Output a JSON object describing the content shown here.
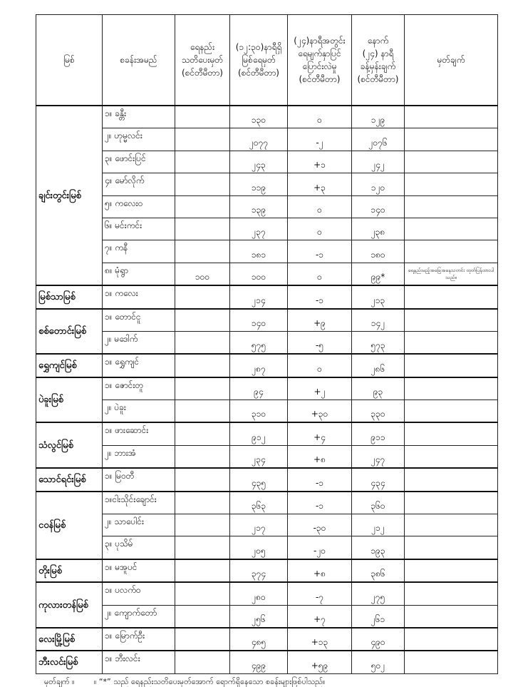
{
  "headers": [
    "မြစ်",
    "စခန်းအမည်",
    "ရေနည်း\nသတိပေးမှတ်\n(စင်တီမီတာ)",
    "(၁၂:၃၀)နာရီရှိ\nမြစ်ရေမှတ်\n(စင်တီမီတာ)",
    "(၂၄)နာရီအတွင်း\nရေမျက်နှာပြင်\nပြောင်းလဲမှု\n(စင်တီမီတာ)",
    "နောက်\n(၂၄) နာရီ\nခန့်မှန်းချက်\n(စင်တီမီတာ)",
    "မှတ်ချက်"
  ],
  "groups": [
    {
      "river": "ချင်းတွင်းမြစ်",
      "stations": [
        {
          "name": "၁။ ခန္တီး",
          "warn": "",
          "level": "၁၃၀",
          "change": "၀",
          "forecast": "၁၂၉",
          "note": ""
        },
        {
          "name": "၂။ ဟုမ္မလင်း",
          "warn": "",
          "level": "၂၀၇၇",
          "change": "-၂",
          "forecast": "၂၀၇၆",
          "note": ""
        },
        {
          "name": "၃။ ဖောင်းပြင်",
          "warn": "",
          "level": "၂၄၃",
          "change": "+၁",
          "forecast": "၂၄၂",
          "note": ""
        },
        {
          "name": "၄။ မော်လိုက်",
          "warn": "",
          "level": "၁၁၉",
          "change": "+၃",
          "forecast": "၁၂၀",
          "note": ""
        },
        {
          "name": "၅။ ကလေးဝ",
          "warn": "",
          "level": "၁၃၉",
          "change": "၀",
          "forecast": "၁၄၀",
          "note": ""
        },
        {
          "name": "၆။ မင်းကင်း",
          "warn": "",
          "level": "၂၃၇",
          "change": "၀",
          "forecast": "၂၃၈",
          "note": ""
        },
        {
          "name": "၇။ ကနီ",
          "warn": "",
          "level": "၁၈၁",
          "change": "-၁",
          "forecast": "၁၈၀",
          "note": ""
        },
        {
          "name": "၈။ မုံရွာ",
          "warn": "၁၀၀",
          "level": "၁၀၀",
          "change": "၀",
          "forecast": "၉၉*",
          "note": "ရေနည်းမည့်အခြေအနေသတင်း ထုတ်ပြန်ထားပါသည်။"
        }
      ]
    },
    {
      "river": "မြစ်သာမြစ်",
      "stations": [
        {
          "name": "၁။ ကလေး",
          "warn": "",
          "level": "၂၁၄",
          "change": "-၁",
          "forecast": "၂၁၃",
          "note": ""
        }
      ]
    },
    {
      "river": "စစ်တောင်းမြစ်",
      "stations": [
        {
          "name": "၁။ တောင်ငူ",
          "warn": "",
          "level": "၁၄၀",
          "change": "+၉",
          "forecast": "၁၄၂",
          "note": ""
        },
        {
          "name": "၂။ မဒေါက်",
          "warn": "",
          "level": "၅၇၅",
          "change": "-၅",
          "forecast": "၅၇၃",
          "note": ""
        }
      ]
    },
    {
      "river": "ရွှေကျင်မြစ်",
      "stations": [
        {
          "name": "၁။ ရွှေကျင်",
          "warn": "",
          "level": "၂၈၇",
          "change": "၀",
          "forecast": "၂၈၆",
          "note": ""
        }
      ]
    },
    {
      "river": "ပဲခူးမြစ်",
      "stations": [
        {
          "name": "၁။ ဇောင်းတူ",
          "warn": "",
          "level": "၉၄",
          "change": "+၂",
          "forecast": "၉၃",
          "note": ""
        },
        {
          "name": "၂။ ပဲခူး",
          "warn": "",
          "level": "၃၁၀",
          "change": "+၃၀",
          "forecast": "၃၃၀",
          "note": ""
        }
      ]
    },
    {
      "river": "သံလွင်မြစ်",
      "stations": [
        {
          "name": "၁။ ဖားဆောင်း",
          "warn": "",
          "level": "၉၁၂",
          "change": "+၄",
          "forecast": "၉၁၁",
          "note": ""
        },
        {
          "name": "၂။ ဘားအံ",
          "warn": "",
          "level": "၂၃၄",
          "change": "+၈",
          "forecast": "၂၄၇",
          "note": ""
        }
      ]
    },
    {
      "river": "သောင်ရင်းမြစ်",
      "stations": [
        {
          "name": "၁။ မြဝတီ",
          "warn": "",
          "level": "၄၃၅",
          "change": "-၁",
          "forecast": "၄၃၄",
          "note": ""
        }
      ]
    },
    {
      "river": "ငဝန်မြစ်",
      "stations": [
        {
          "name": "၁။ငါးသိုင်းချောင်း",
          "warn": "",
          "level": "၃၆၃",
          "change": "-၁",
          "forecast": "၃၆၀",
          "note": ""
        },
        {
          "name": "၂။ သာပေါင်း",
          "warn": "",
          "level": "၂၁၇",
          "change": "-၃၀",
          "forecast": "၂၁၂",
          "note": ""
        },
        {
          "name": "၃။ ပုသိမ်",
          "warn": "",
          "level": "၂၀၅",
          "change": "-၂၀",
          "forecast": "၁၉၃",
          "note": ""
        }
      ]
    },
    {
      "river": "တိုးမြစ်",
      "stations": [
        {
          "name": "၁။ မအူပင်",
          "warn": "",
          "level": "၃၇၄",
          "change": "+၈",
          "forecast": "၃၈၆",
          "note": ""
        }
      ]
    },
    {
      "river": "ကုလားတန်မြစ်",
      "stations": [
        {
          "name": "၁။ ပလက်ဝ",
          "warn": "",
          "level": "၂၈၀",
          "change": "-၇",
          "forecast": "၂၇၅",
          "note": ""
        },
        {
          "name": "၂။ ကျောက်တော်",
          "warn": "",
          "level": "၂၅၆",
          "change": "+၇",
          "forecast": "၂၆၁",
          "note": ""
        }
      ]
    },
    {
      "river": "လေးမြို့မြစ်",
      "stations": [
        {
          "name": "၁။ မြောက်ဦး",
          "warn": "",
          "level": "၄၈၅",
          "change": "+၁၃",
          "forecast": "၄၉၀",
          "note": ""
        }
      ]
    },
    {
      "river": "ဘီးလင်းမြစ်",
      "stations": [
        {
          "name": "၁။ ဘီးလင်း",
          "warn": "",
          "level": "၄၉၉",
          "change": "+၅၉",
          "forecast": "၅၀၂",
          "note": ""
        }
      ]
    }
  ],
  "footer": {
    "label": "မှတ်ချက် ။",
    "text": "။ “*” သည် ရေနည်းသတိပေးမှတ်အောက် ရောက်ရှိနေသော စခန်းများဖြစ်ပါသည်။"
  }
}
